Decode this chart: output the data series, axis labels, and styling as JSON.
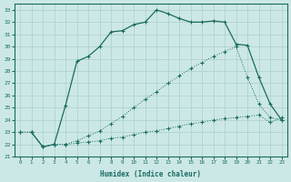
{
  "xlabel": "Humidex (Indice chaleur)",
  "bg_color": "#cce8e6",
  "line_color": "#1a6b60",
  "grid_color": "#aacfcc",
  "xlim": [
    -0.5,
    23.5
  ],
  "ylim": [
    21,
    33.5
  ],
  "yticks": [
    21,
    22,
    23,
    24,
    25,
    26,
    27,
    28,
    29,
    30,
    31,
    32,
    33
  ],
  "xticks": [
    0,
    1,
    2,
    3,
    4,
    5,
    6,
    7,
    8,
    9,
    10,
    11,
    12,
    13,
    14,
    15,
    16,
    17,
    18,
    19,
    20,
    21,
    22,
    23
  ],
  "series": [
    {
      "x": [
        0,
        1,
        2,
        3,
        4,
        5,
        6,
        7,
        8,
        9,
        10,
        11,
        12,
        13,
        14,
        15,
        16,
        17,
        18,
        19,
        20,
        21,
        22,
        23
      ],
      "y": [
        23.0,
        23.0,
        21.8,
        22.0,
        22.0,
        22.1,
        22.2,
        22.3,
        22.5,
        22.6,
        22.8,
        23.0,
        23.1,
        23.3,
        23.5,
        23.7,
        23.8,
        24.0,
        24.1,
        24.2,
        24.3,
        24.4,
        23.8,
        24.2
      ],
      "style": "dotted"
    },
    {
      "x": [
        0,
        1,
        2,
        3,
        4,
        5,
        6,
        7,
        8,
        9,
        10,
        11,
        12,
        13,
        14,
        15,
        16,
        17,
        18,
        19,
        20,
        21,
        22,
        23
      ],
      "y": [
        23.0,
        23.0,
        21.8,
        22.0,
        22.0,
        22.3,
        22.7,
        23.1,
        23.7,
        24.3,
        25.0,
        25.7,
        26.3,
        27.0,
        27.6,
        28.2,
        28.7,
        29.2,
        29.6,
        30.0,
        27.5,
        25.3,
        24.2,
        24.0
      ],
      "style": "dotted"
    },
    {
      "x": [
        1,
        2,
        3,
        4,
        5,
        6,
        7,
        8,
        9,
        10,
        11,
        12,
        13,
        14,
        15,
        16,
        17,
        18,
        19,
        20,
        21,
        22,
        23
      ],
      "y": [
        23.0,
        21.8,
        22.0,
        25.2,
        28.8,
        29.2,
        30.0,
        31.2,
        31.3,
        31.8,
        32.0,
        33.0,
        32.7,
        32.3,
        32.0,
        32.0,
        32.1,
        32.0,
        30.2,
        30.1,
        27.5,
        25.3,
        24.0
      ],
      "style": "solid"
    }
  ]
}
